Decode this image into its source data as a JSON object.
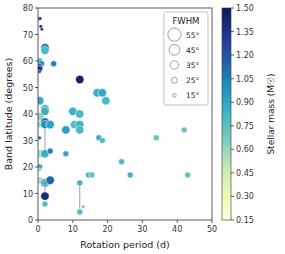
{
  "chart_data": {
    "type": "scatter",
    "x_label": "Rotation period (d)",
    "y_label": "Band latitude (degrees)",
    "xlim": [
      0,
      50
    ],
    "ylim": [
      0,
      80
    ],
    "xticks": [
      0,
      10,
      20,
      30,
      40,
      50
    ],
    "yticks": [
      0,
      10,
      20,
      30,
      40,
      50,
      60,
      70,
      80
    ],
    "grid": false,
    "legend": "upper right",
    "legend_title": "FWHM",
    "size_legend": [
      {
        "value": 55,
        "label": "55°"
      },
      {
        "value": 45,
        "label": "45°"
      },
      {
        "value": 35,
        "label": "35°"
      },
      {
        "value": 25,
        "label": "25°"
      },
      {
        "value": 15,
        "label": "15°"
      }
    ],
    "color_label": "Stellar mass (M☉)",
    "color_range": [
      0.15,
      1.5
    ],
    "color_ticks": [
      0.15,
      {
        "value": 0.3,
        "label": "0.30"
      },
      0.45,
      {
        "value": 0.6,
        "label": "0.60"
      },
      0.75,
      {
        "value": 0.9,
        "label": "0.90"
      },
      1.05,
      {
        "value": 1.2,
        "label": "1.20"
      },
      1.35,
      {
        "value": 1.5,
        "label": "1.50"
      }
    ],
    "x": [
      0.3,
      0.6,
      0.8,
      1.1,
      0.5,
      1.0,
      0.5,
      0.5,
      0.5,
      0.5,
      0.5,
      0.5,
      0.5,
      0.5,
      0.5,
      0.5,
      0.5,
      0.5,
      0.5,
      2.0,
      2.0,
      2.0,
      2.0,
      2.0,
      2.0,
      2.0,
      2.0,
      2.0,
      2.0,
      2.0,
      2.0,
      3.5,
      3.5,
      3.5,
      3.5,
      4.5,
      8.0,
      8.0,
      10.0,
      10.5,
      12.0,
      12.0,
      12.0,
      12.0,
      12.0,
      12.0,
      13.0,
      14.5,
      15.5,
      17.0,
      17.5,
      18.5,
      18.5,
      19.5,
      24.0,
      26.5,
      34.0,
      42.0,
      43.0
    ],
    "values": [
      76,
      76,
      73,
      72,
      60,
      59,
      58,
      57,
      56,
      45,
      39,
      36,
      31,
      25,
      25,
      20,
      19,
      15,
      15,
      65,
      64,
      42,
      41,
      37,
      36,
      25,
      25,
      14,
      14,
      9,
      6,
      36,
      36,
      26,
      15,
      59,
      34,
      25,
      41,
      36,
      53,
      40,
      36,
      34,
      14,
      3,
      5,
      17,
      17,
      48,
      31,
      48,
      30,
      45,
      22,
      17,
      31,
      34,
      17
    ],
    "color_values": [
      1.45,
      1.35,
      1.42,
      1.3,
      0.85,
      1.05,
      1.1,
      1.42,
      1.2,
      0.88,
      0.6,
      0.6,
      1.15,
      0.85,
      0.55,
      0.88,
      0.6,
      0.85,
      0.55,
      1.1,
      0.8,
      0.78,
      0.85,
      1.1,
      1.0,
      1.1,
      0.85,
      1.2,
      0.85,
      1.4,
      0.78,
      1.1,
      0.92,
      1.05,
      1.15,
      1.05,
      0.92,
      0.9,
      0.85,
      0.78,
      1.45,
      0.8,
      0.85,
      0.8,
      0.85,
      0.78,
      0.72,
      0.8,
      0.75,
      0.85,
      0.88,
      0.88,
      0.78,
      0.8,
      0.8,
      0.85,
      0.72,
      0.72,
      0.75
    ],
    "sizes": [
      15,
      15,
      15,
      15,
      25,
      25,
      25,
      25,
      15,
      35,
      35,
      25,
      15,
      25,
      35,
      25,
      15,
      25,
      15,
      35,
      35,
      35,
      35,
      35,
      35,
      25,
      35,
      35,
      25,
      35,
      25,
      35,
      35,
      25,
      35,
      25,
      35,
      25,
      35,
      35,
      35,
      35,
      35,
      35,
      25,
      25,
      15,
      25,
      25,
      35,
      25,
      35,
      25,
      35,
      25,
      25,
      25,
      25,
      25
    ],
    "connections": [
      {
        "x": [
          2.0,
          2.0
        ],
        "values": [
          36,
          25
        ]
      },
      {
        "x": [
          2.0,
          2.0
        ],
        "values": [
          14,
          9
        ]
      },
      {
        "x": [
          12.0,
          12.0
        ],
        "values": [
          36,
          34
        ]
      },
      {
        "x": [
          12.0,
          12.0
        ],
        "values": [
          14,
          3
        ]
      }
    ]
  }
}
